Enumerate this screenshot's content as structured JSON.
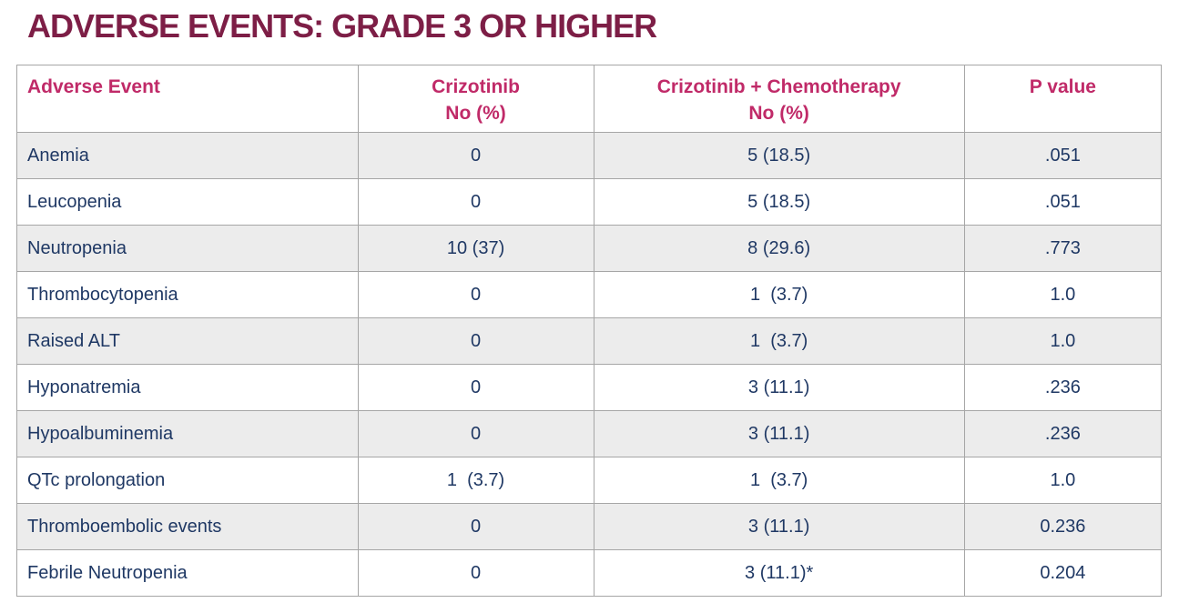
{
  "page": {
    "title": "ADVERSE EVENTS: GRADE 3 OR HIGHER"
  },
  "colors": {
    "title": "#7D1E46",
    "header_text": "#C02A68",
    "data_text": "#1F3864",
    "row_stripe": "#ECECEC",
    "table_border": "#A6A6A6",
    "background": "#FFFFFF"
  },
  "table": {
    "columns": [
      {
        "label": "Adverse Event",
        "sub": ""
      },
      {
        "label": "Crizotinib",
        "sub": "No (%)"
      },
      {
        "label": "Crizotinib + Chemotherapy",
        "sub": "No (%)"
      },
      {
        "label": "P value",
        "sub": ""
      }
    ],
    "rows": [
      {
        "event": "Anemia",
        "crizotinib": "0",
        "combo": "5 (18.5)",
        "p_value": ".051"
      },
      {
        "event": "Leucopenia",
        "crizotinib": "0",
        "combo": "5 (18.5)",
        "p_value": ".051"
      },
      {
        "event": "Neutropenia",
        "crizotinib": "10 (37)",
        "combo": "8 (29.6)",
        "p_value": ".773"
      },
      {
        "event": "Thrombocytopenia",
        "crizotinib": "0",
        "combo": "1  (3.7)",
        "p_value": "1.0"
      },
      {
        "event": "Raised ALT",
        "crizotinib": "0",
        "combo": "1  (3.7)",
        "p_value": "1.0"
      },
      {
        "event": "Hyponatremia",
        "crizotinib": "0",
        "combo": "3 (11.1)",
        "p_value": ".236"
      },
      {
        "event": "Hypoalbuminemia",
        "crizotinib": "0",
        "combo": "3 (11.1)",
        "p_value": ".236"
      },
      {
        "event": "QTc prolongation",
        "crizotinib": "1  (3.7)",
        "combo": "1  (3.7)",
        "p_value": "1.0"
      },
      {
        "event": "Thromboembolic events",
        "crizotinib": "0",
        "combo": "3 (11.1)",
        "p_value": "0.236"
      },
      {
        "event": "Febrile Neutropenia",
        "crizotinib": "0",
        "combo": "3 (11.1)*",
        "p_value": "0.204"
      }
    ]
  }
}
